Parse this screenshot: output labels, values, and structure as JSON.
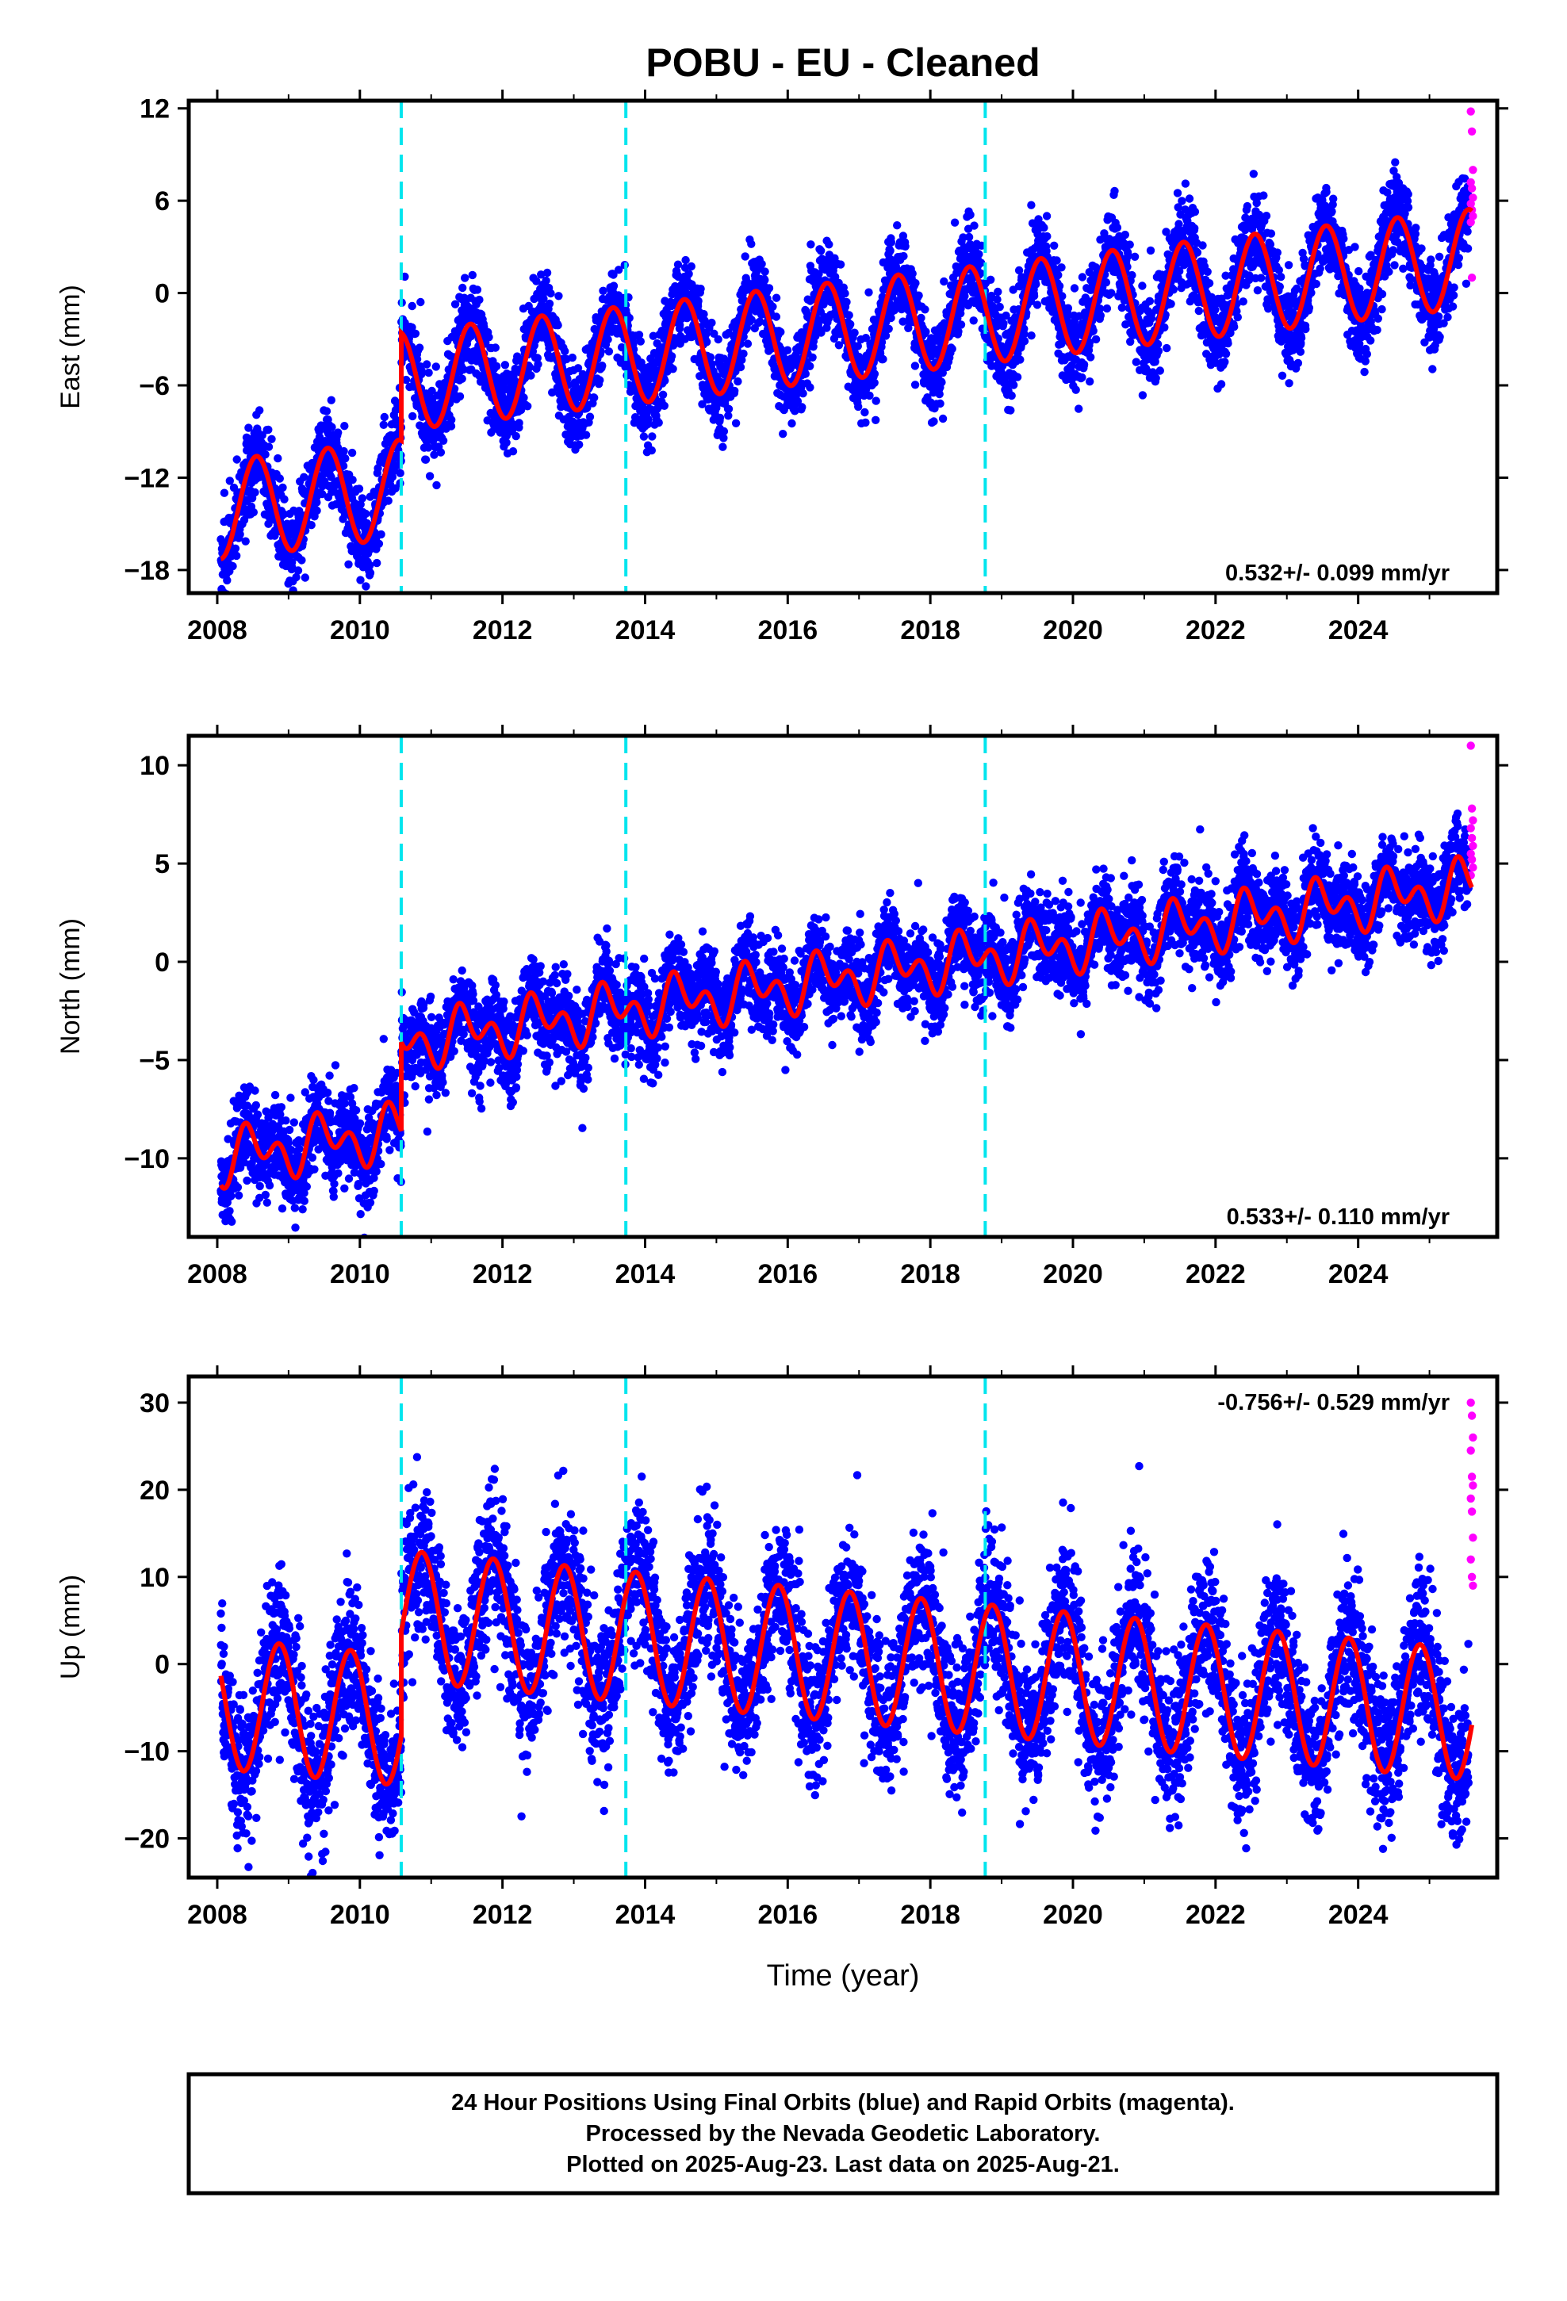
{
  "title": "POBU  - EU - Cleaned",
  "xlabel": "Time (year)",
  "footer": {
    "line1": "24 Hour Positions Using Final Orbits (blue) and Rapid Orbits (magenta).",
    "line2": "Processed by the Nevada Geodetic Laboratory.",
    "line3": "Plotted on 2025-Aug-23. Last data on 2025-Aug-21."
  },
  "colors": {
    "final_orbits": "#0000ff",
    "rapid_orbits": "#ff00ff",
    "model": "#ff0000",
    "events": "#00e5ee"
  },
  "chart_data": [
    {
      "type": "scatter",
      "name": "east",
      "ylabel": "East (mm)",
      "rate_label": "0.532+/- 0.099 mm/yr",
      "rate_position": "bottom-right",
      "xlim": [
        2007.6,
        2025.95
      ],
      "ylim": [
        -19.5,
        12.5
      ],
      "yticks": [
        12,
        6,
        0,
        -6,
        -12,
        -18
      ],
      "ytick_labels": [
        "12",
        "6",
        "0",
        "−6",
        "−12",
        "−18"
      ],
      "xticks": [
        2008,
        2010,
        2012,
        2014,
        2016,
        2018,
        2020,
        2022,
        2024
      ],
      "xtick_labels": [
        "2008",
        "2010",
        "2012",
        "2014",
        "2016",
        "2018",
        "2020",
        "2022",
        "2024"
      ],
      "event_lines": [
        2010.58,
        2013.73,
        2018.77
      ],
      "model": {
        "slope": 0.532,
        "offset_2008": -14.1,
        "amp": 3.2,
        "semi_amp": 0.0,
        "phase": -0.3,
        "step_at": 2010.58,
        "step": 7.0,
        "noise": 1.4
      },
      "rapid_points": [
        11.8,
        10.5,
        8.0,
        7.2,
        6.8,
        6.2,
        5.8,
        5.4,
        5.0,
        4.6,
        1.0
      ]
    },
    {
      "type": "scatter",
      "name": "north",
      "ylabel": "North (mm)",
      "rate_label": "0.533+/- 0.110 mm/yr",
      "rate_position": "bottom-right",
      "xlim": [
        2007.6,
        2025.95
      ],
      "ylim": [
        -14,
        11.5
      ],
      "yticks": [
        10,
        5,
        0,
        -5,
        -10
      ],
      "ytick_labels": [
        "10",
        "5",
        "0",
        "−5",
        "−10"
      ],
      "xticks": [
        2008,
        2010,
        2012,
        2014,
        2016,
        2018,
        2020,
        2022,
        2024
      ],
      "xtick_labels": [
        "2008",
        "2010",
        "2012",
        "2014",
        "2016",
        "2018",
        "2020",
        "2022",
        "2024"
      ],
      "event_lines": [
        2010.58,
        2013.73,
        2018.77
      ],
      "model": {
        "slope": 0.533,
        "offset_2008": -10.0,
        "amp": 0.9,
        "semi_amp": 0.9,
        "phase": -0.25,
        "step_at": 2010.58,
        "step": 4.5,
        "noise": 1.1
      },
      "rapid_points": [
        11.0,
        7.8,
        7.2,
        6.8,
        6.3,
        5.9,
        5.5,
        5.2,
        4.8,
        4.4
      ]
    },
    {
      "type": "scatter",
      "name": "up",
      "ylabel": "Up (mm)",
      "rate_label": "-0.756+/- 0.529 mm/yr",
      "rate_position": "top-right",
      "xlim": [
        2007.6,
        2025.95
      ],
      "ylim": [
        -24.5,
        33
      ],
      "yticks": [
        30,
        20,
        10,
        0,
        -10,
        -20
      ],
      "ytick_labels": [
        "30",
        "20",
        "10",
        "0",
        "−10",
        "−20"
      ],
      "xticks": [
        2008,
        2010,
        2012,
        2014,
        2016,
        2018,
        2020,
        2022,
        2024
      ],
      "xtick_labels": [
        "2008",
        "2010",
        "2012",
        "2014",
        "2016",
        "2018",
        "2020",
        "2022",
        "2024"
      ],
      "event_lines": [
        2010.58,
        2013.73,
        2018.77
      ],
      "model": {
        "slope": -0.756,
        "offset_2008": -4.5,
        "amp": 7.5,
        "semi_amp": 0.0,
        "phase": 0.38,
        "step_at": 2010.58,
        "step": 12.0,
        "noise": 4.2
      },
      "rapid_points": [
        30.0,
        28.5,
        26.0,
        24.5,
        21.5,
        20.5,
        19.0,
        17.5,
        14.5,
        12.0,
        10.0,
        9.0
      ]
    }
  ]
}
